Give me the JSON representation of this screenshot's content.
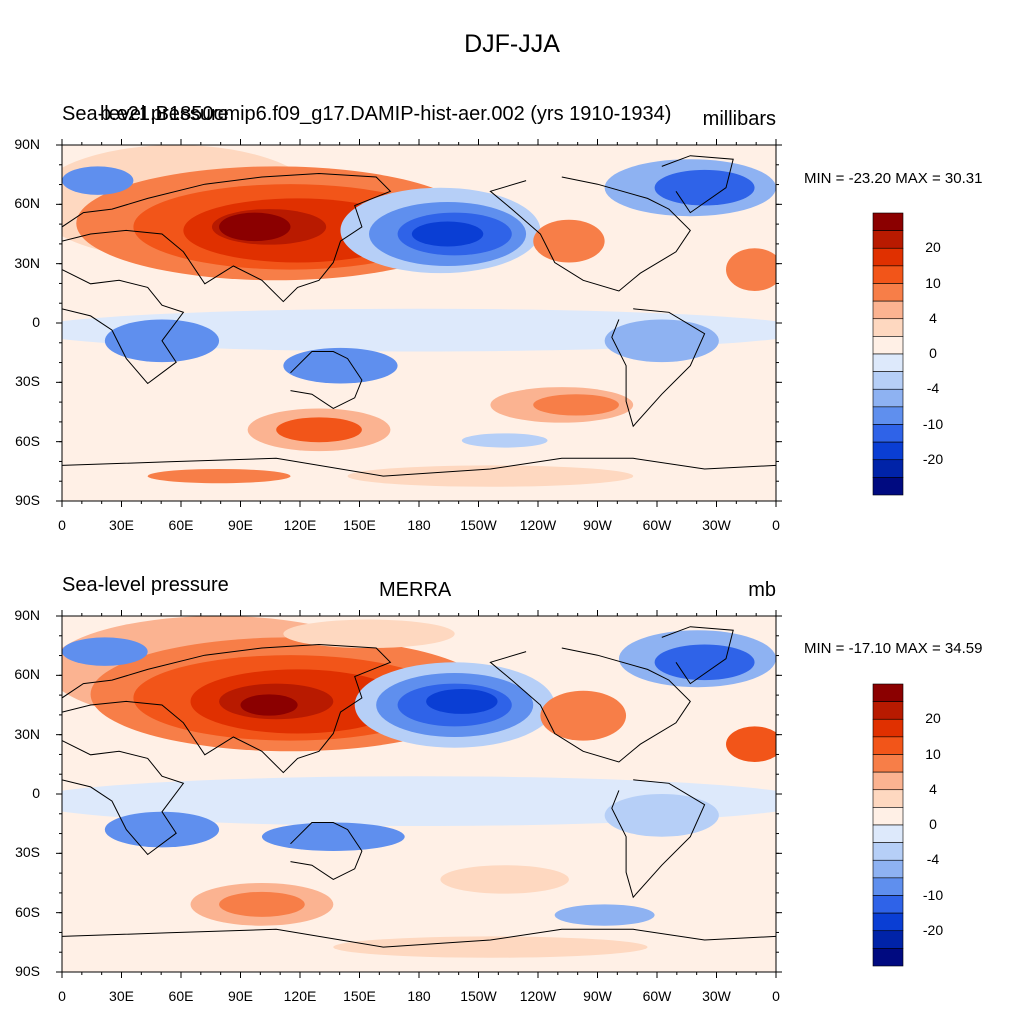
{
  "main_title": "DJF-JJA",
  "x_ticks": [
    "0",
    "30E",
    "60E",
    "90E",
    "120E",
    "150E",
    "180",
    "150W",
    "120W",
    "90W",
    "60W",
    "30W",
    "0"
  ],
  "y_ticks": [
    "90N",
    "60N",
    "30N",
    "0",
    "30S",
    "60S",
    "90S"
  ],
  "panels": [
    {
      "left_label": "Sea-level pressure",
      "center_label": "b.e21.B1850cmip6.f09_g17.DAMIP-hist-aer.002 (yrs 1910-1934)",
      "right_label": "millibars",
      "stats": "MIN = -23.20 MAX =  30.31",
      "colorbar_labels": [
        "20",
        "10",
        "4",
        "0",
        "-4",
        "-10",
        "-20"
      ]
    },
    {
      "left_label": "Sea-level pressure",
      "center_label": "MERRA",
      "right_label": "mb",
      "stats": "MIN = -17.10 MAX =  34.59",
      "colorbar_labels": [
        "20",
        "10",
        "4",
        "0",
        "-4",
        "-10",
        "-20"
      ]
    }
  ],
  "colors": [
    "#8b0000",
    "#b81a00",
    "#e03000",
    "#f25519",
    "#f77e48",
    "#fbb391",
    "#fed8c0",
    "#fff0e6",
    "#dde9fb",
    "#b6cff7",
    "#8eb2f2",
    "#5f8fee",
    "#2f63e8",
    "#0a3ed4",
    "#0023a8",
    "#000a80"
  ]
}
